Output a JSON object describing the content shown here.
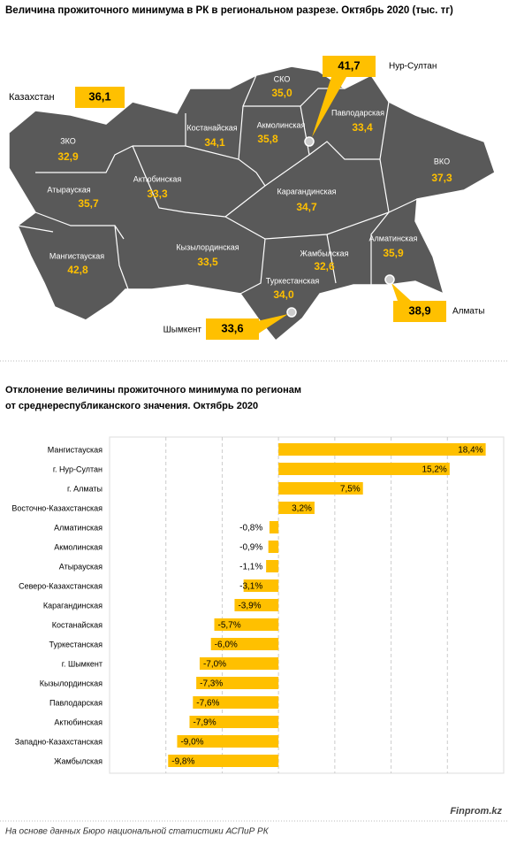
{
  "map": {
    "title": "Величина прожиточного минимума в РК в региональном разрезе. Октябрь 2020  (тыс. тг)",
    "country": {
      "name": "Казахстан",
      "value": "36,1"
    },
    "regions": [
      {
        "name": "ЗКО",
        "value": "32,9"
      },
      {
        "name": "Атырауская",
        "value": "35,7"
      },
      {
        "name": "Мангистауская",
        "value": "42,8"
      },
      {
        "name": "Актюбинская",
        "value": "33,3"
      },
      {
        "name": "Костанайская",
        "value": "34,1"
      },
      {
        "name": "СКО",
        "value": "35,0"
      },
      {
        "name": "Акмолинская",
        "value": "35,8"
      },
      {
        "name": "Павлодарская",
        "value": "33,4"
      },
      {
        "name": "ВКО",
        "value": "37,3"
      },
      {
        "name": "Карагандинская",
        "value": "34,7"
      },
      {
        "name": "Кызылординская",
        "value": "33,5"
      },
      {
        "name": "Жамбылская",
        "value": "32,6"
      },
      {
        "name": "Алматинская",
        "value": "35,9"
      },
      {
        "name": "Туркестанская",
        "value": "34,0"
      }
    ],
    "cities": [
      {
        "name": "Нур-Султан",
        "value": "41,7"
      },
      {
        "name": "Алматы",
        "value": "38,9"
      },
      {
        "name": "Шымкент",
        "value": "33,6"
      }
    ]
  },
  "chart_data": {
    "type": "hbar",
    "title": "Отклонение величины  прожиточного минимума  по регионам",
    "subtitle": "от среднереспубликанского  значения. Октябрь  2020",
    "categories": [
      "Мангистауская",
      "г. Нур-Султан",
      "г. Алматы",
      "Восточно-Казахстанская",
      "Алматинская",
      "Акмолинская",
      "Атырауская",
      "Северо-Казахстанская",
      "Карагандинская",
      "Костанайская",
      "Туркестанская",
      "г. Шымкент",
      "Кызылординская",
      "Павлодарская",
      "Актюбинская",
      "Западно-Казахстанская",
      "Жамбылская"
    ],
    "values": [
      18.4,
      15.2,
      7.5,
      3.2,
      -0.8,
      -0.9,
      -1.1,
      -3.1,
      -3.9,
      -5.7,
      -6.0,
      -7.0,
      -7.3,
      -7.6,
      -7.9,
      -9.0,
      -9.8
    ],
    "value_labels": [
      "18,4%",
      "15,2%",
      "7,5%",
      "3,2%",
      "-0,8%",
      "-0,9%",
      "-1,1%",
      "-3,1%",
      "-3,9%",
      "-5,7%",
      "-6,0%",
      "-7,0%",
      "-7,3%",
      "-7,6%",
      "-7,9%",
      "-9,0%",
      "-9,8%"
    ],
    "color": "#ffc000",
    "xlim": [
      -15,
      20
    ],
    "xticks": [
      -10,
      -5,
      0,
      5,
      10,
      15
    ],
    "grid": true
  },
  "footer": {
    "source": "На основе данных Бюро национальной  статистики АСПиР РК",
    "brand": "Finprom.kz"
  }
}
